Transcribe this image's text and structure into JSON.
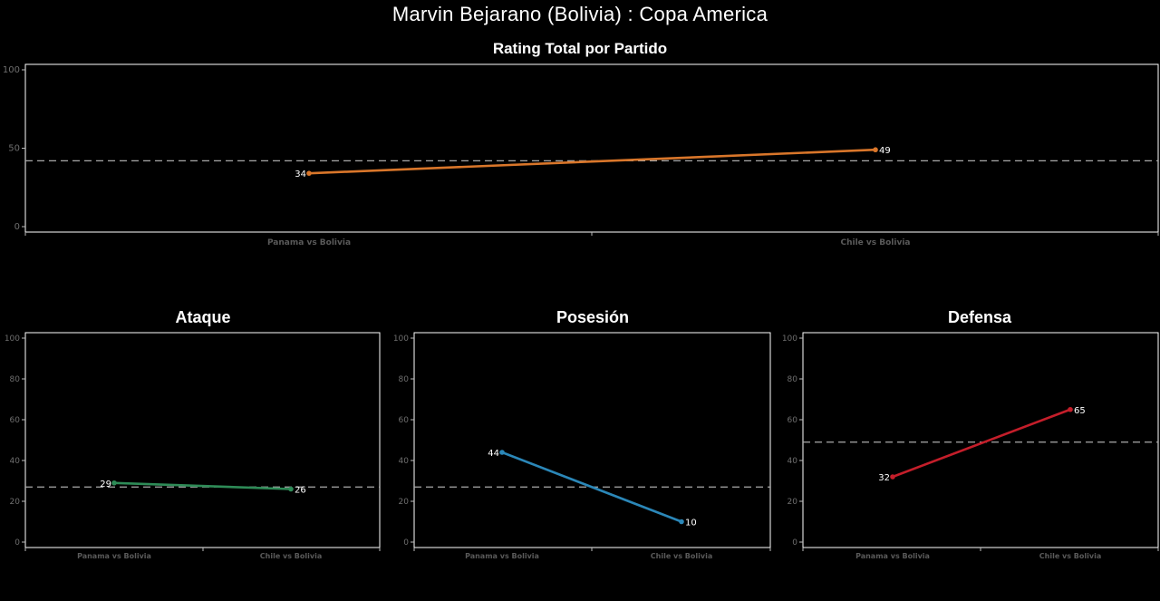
{
  "title": "Marvin Bejarano (Bolivia) :  Copa  America",
  "chart_data": [
    {
      "id": "total",
      "type": "line",
      "title": "Rating Total por Partido",
      "categories": [
        "Panama vs Bolivia",
        "Chile vs Bolivia"
      ],
      "values": [
        34,
        49
      ],
      "value_labels": [
        "34",
        "49"
      ],
      "average": 42,
      "ylim": [
        0,
        100
      ],
      "yticks": [
        0,
        50,
        100
      ],
      "ytick_labels": [
        "0",
        "50",
        "100"
      ],
      "color": "#d9762a",
      "grid": false
    },
    {
      "id": "ataque",
      "type": "line",
      "title": "Ataque",
      "categories": [
        "Panama vs Bolivia",
        "Chile vs Bolivia"
      ],
      "values": [
        29,
        26
      ],
      "value_labels": [
        "29",
        "26"
      ],
      "average": 27,
      "ylim": [
        0,
        100
      ],
      "yticks": [
        0,
        20,
        40,
        60,
        80,
        100
      ],
      "ytick_labels": [
        "0",
        "20",
        "40",
        "60",
        "80",
        "100"
      ],
      "color": "#2e8b57",
      "grid": false
    },
    {
      "id": "posesion",
      "type": "line",
      "title": "Posesión",
      "categories": [
        "Panama vs Bolivia",
        "Chile vs Bolivia"
      ],
      "values": [
        44,
        10
      ],
      "value_labels": [
        "44",
        "10"
      ],
      "average": 27,
      "ylim": [
        0,
        100
      ],
      "yticks": [
        0,
        20,
        40,
        60,
        80,
        100
      ],
      "ytick_labels": [
        "0",
        "20",
        "40",
        "60",
        "80",
        "100"
      ],
      "color": "#2b87b8",
      "grid": false
    },
    {
      "id": "defensa",
      "type": "line",
      "title": "Defensa",
      "categories": [
        "Panama vs Bolivia",
        "Chile vs Bolivia"
      ],
      "values": [
        32,
        65
      ],
      "value_labels": [
        "32",
        "65"
      ],
      "average": 49,
      "ylim": [
        0,
        100
      ],
      "yticks": [
        0,
        20,
        40,
        60,
        80,
        100
      ],
      "ytick_labels": [
        "0",
        "20",
        "40",
        "60",
        "80",
        "100"
      ],
      "color": "#c41e2a",
      "grid": false
    }
  ]
}
